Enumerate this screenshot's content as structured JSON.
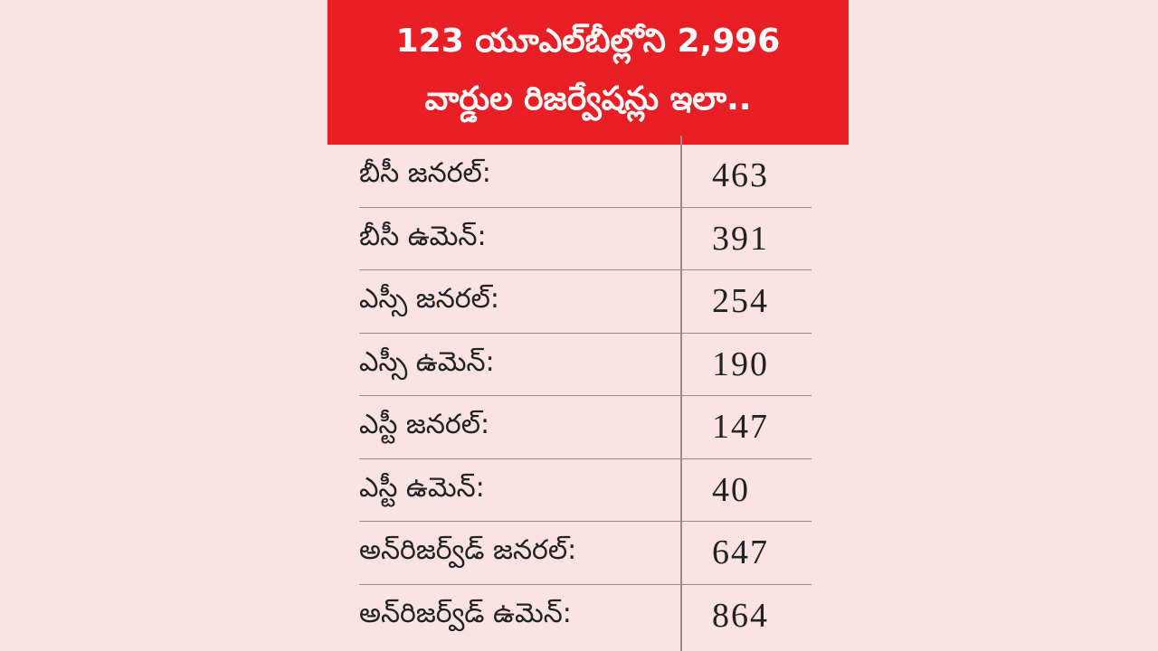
{
  "title": {
    "line1": "123 యూఎల్‌బీల్లోని 2,996",
    "line2": "వార్డుల రిజర్వేషన్లు ఇలా.."
  },
  "colors": {
    "banner": "#ea1f26",
    "background": "#fbe3e3"
  },
  "rows": [
    {
      "label": "బీసీ జనరల్:",
      "value": "463"
    },
    {
      "label": "బీసీ ఉమెన్:",
      "value": "391"
    },
    {
      "label": "ఎస్సీ జనరల్:",
      "value": "254"
    },
    {
      "label": "ఎస్సీ ఉమెన్:",
      "value": "190"
    },
    {
      "label": "ఎస్టీ జనరల్:",
      "value": "147"
    },
    {
      "label": "ఎస్టీ ఉమెన్:",
      "value": "40"
    },
    {
      "label": "అన్‌రిజర్వ్‌డ్ జనరల్:",
      "value": "647"
    },
    {
      "label": "అన్‌రిజర్వ్‌డ్ ఉమెన్:",
      "value": "864"
    }
  ]
}
